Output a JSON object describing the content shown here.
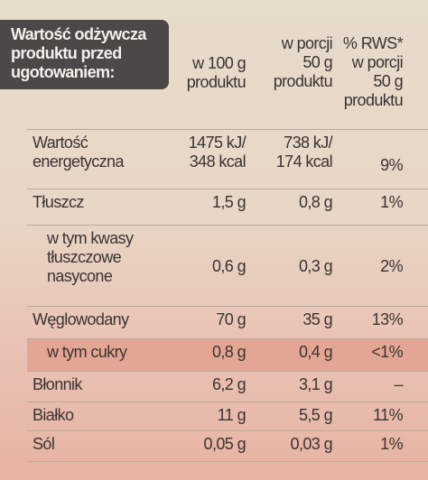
{
  "table": {
    "header": [
      [
        "Wartość odżywcza",
        "produktu przed",
        "ugotowaniem:"
      ],
      [
        "w 100 g",
        "produktu"
      ],
      [
        "w porcji",
        "50 g",
        "produktu"
      ],
      [
        "% RWS*",
        "w porcji",
        "50 g",
        "produktu"
      ]
    ],
    "rows": [
      [
        [
          "Wartość",
          "energetyczna"
        ],
        [
          "1475 kJ/",
          "348 kcal"
        ],
        [
          "738 kJ/",
          "174 kcal"
        ],
        [
          "9%"
        ]
      ],
      [
        [
          "Tłuszcz"
        ],
        [
          "1,5 g"
        ],
        [
          "0,8 g"
        ],
        [
          "1%"
        ]
      ],
      [
        [
          "w tym kwasy",
          "tłuszczowe",
          "nasycone"
        ],
        [
          "0,6 g"
        ],
        [
          "0,3 g"
        ],
        [
          "2%"
        ]
      ],
      [
        [
          "Węglowodany"
        ],
        [
          "70 g"
        ],
        [
          "35 g"
        ],
        [
          "13%"
        ]
      ],
      [
        [
          "w tym cukry"
        ],
        [
          "0,8 g"
        ],
        [
          "0,4 g"
        ],
        [
          "<1%"
        ]
      ],
      [
        [
          "Błonnik"
        ],
        [
          "6,2 g"
        ],
        [
          "3,1 g"
        ],
        [
          "–"
        ]
      ],
      [
        [
          "Białko"
        ],
        [
          "11 g"
        ],
        [
          "5,5 g"
        ],
        [
          "11%"
        ]
      ],
      [
        [
          "Sól"
        ],
        [
          "0,05 g"
        ],
        [
          "0,03 g"
        ],
        [
          "1%"
        ]
      ]
    ]
  }
}
